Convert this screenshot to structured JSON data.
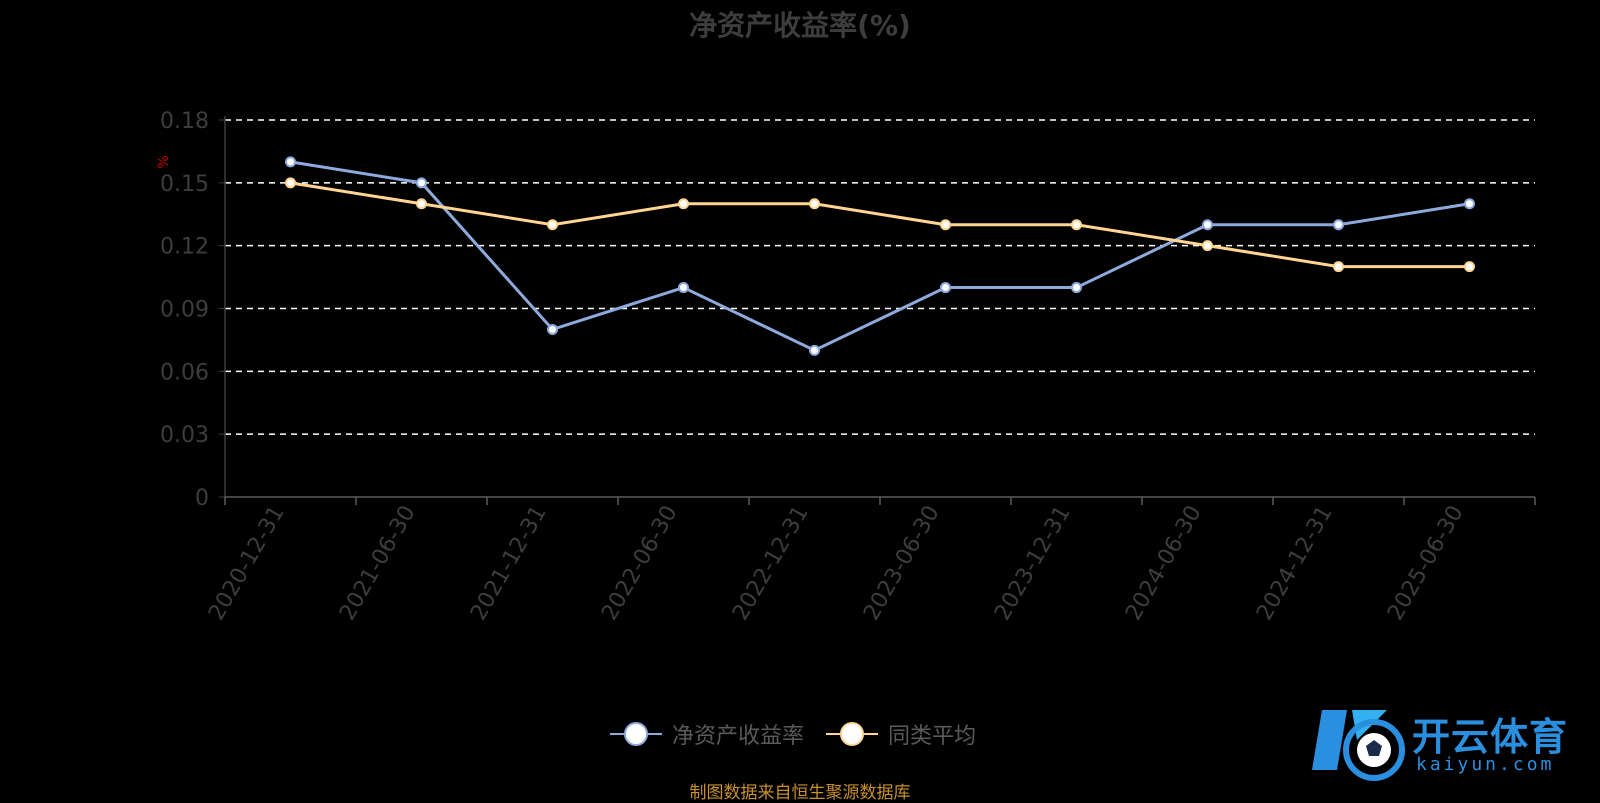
{
  "chart_data": {
    "type": "line",
    "title": "净资产收益率(%)",
    "ylabel": "%",
    "ylim": [
      0,
      0.18
    ],
    "yticks": [
      "0",
      "0.03",
      "0.06",
      "0.09",
      "0.12",
      "0.15",
      "0.18"
    ],
    "categories": [
      "2020-12-31",
      "2021-06-30",
      "2021-12-31",
      "2022-06-30",
      "2022-12-31",
      "2023-06-30",
      "2023-12-31",
      "2024-06-30",
      "2024-12-31",
      "2025-06-30"
    ],
    "grid": true,
    "legend_position": "bottom-center",
    "series": [
      {
        "name": "净资产收益率",
        "color": "#8eaadc",
        "values": [
          0.16,
          0.15,
          0.08,
          0.1,
          0.07,
          0.1,
          0.1,
          0.13,
          0.13,
          0.14
        ]
      },
      {
        "name": "同类平均",
        "color": "#ffd591",
        "values": [
          0.15,
          0.14,
          0.13,
          0.14,
          0.14,
          0.13,
          0.13,
          0.12,
          0.11,
          0.11
        ]
      }
    ]
  },
  "footer": {
    "source": "制图数据来自恒生聚源数据库"
  },
  "logo": {
    "name": "开云体育",
    "domain": "kaiyun.com"
  }
}
